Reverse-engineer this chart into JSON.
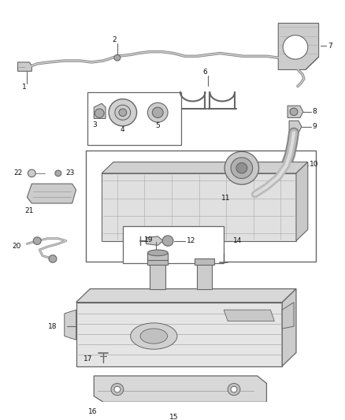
{
  "bg_color": "#ffffff",
  "line_color": "#666666",
  "fill_light": "#e8e8e8",
  "fill_mid": "#cccccc",
  "fill_dark": "#aaaaaa",
  "figsize": [
    4.38,
    5.33
  ],
  "dpi": 100,
  "label_fs": 6.5,
  "label_color": "#111111"
}
